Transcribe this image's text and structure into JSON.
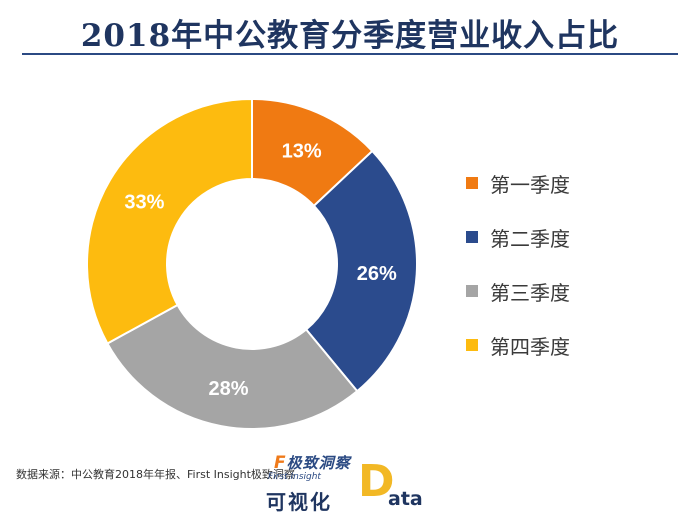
{
  "title": "2018年中公教育分季度营业收入占比",
  "chart_data": {
    "type": "pie",
    "donut": true,
    "categories": [
      "第一季度",
      "第二季度",
      "第三季度",
      "第四季度"
    ],
    "values": [
      13,
      26,
      28,
      33
    ],
    "labels": [
      "13%",
      "26%",
      "28%",
      "33%"
    ],
    "colors": [
      "#f07a12",
      "#2b4b8d",
      "#a5a5a5",
      "#fdbb0f"
    ],
    "legend_position": "right"
  },
  "source": "数据来源：中公教育2018年年报、First Insight极致洞察",
  "brand": {
    "logo_f": "F",
    "logo_text": "极致洞察",
    "logo_sub": "First Insight",
    "name": "可视化",
    "d": "D",
    "ata": "ata"
  }
}
